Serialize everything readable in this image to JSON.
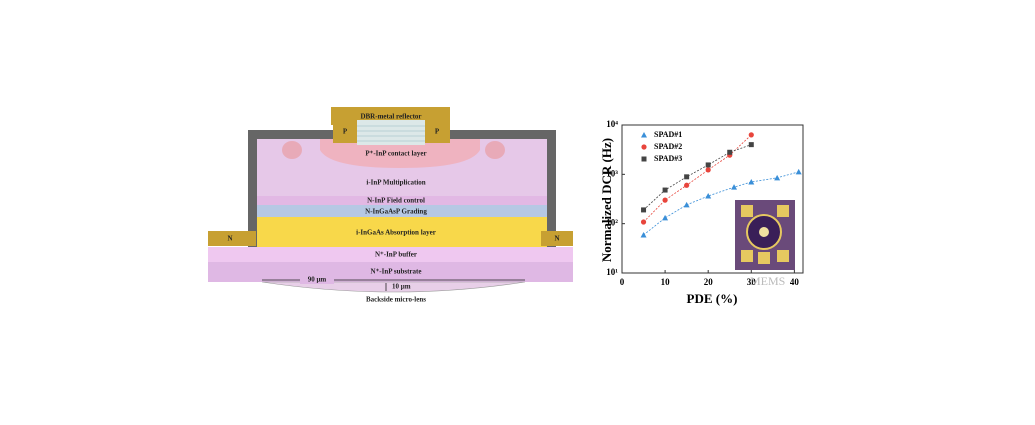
{
  "diagram": {
    "layers": {
      "reflector": "DBR-metal reflector",
      "p_contact_left": "P",
      "p_contact_right": "P",
      "contact": "P⁺-InP contact layer",
      "multiplication": "i-InP Multiplication",
      "field": "N-InP Field control",
      "grading": "N-InGaAsP Grading",
      "absorption": "i-InGaAs Absorption layer",
      "n_contact_left": "N",
      "n_contact_right": "N",
      "buffer": "N⁺-InP buffer",
      "substrate": "N⁺-InP substrate"
    },
    "dimensions": {
      "width": "90 μm",
      "height": "10 μm"
    },
    "lens": "Backside micro-lens"
  },
  "chart_data": {
    "type": "scatter",
    "xlabel": "PDE (%)",
    "ylabel": "Normalized DCR (Hz)",
    "xlim": [
      0,
      42
    ],
    "xticks": [
      0,
      10,
      20,
      30,
      40
    ],
    "ylim": [
      10,
      10000
    ],
    "log_y": true,
    "yticks": [
      {
        "value": 10,
        "label": "10¹"
      },
      {
        "value": 100,
        "label": "10²"
      },
      {
        "value": 1000,
        "label": "10³"
      },
      {
        "value": 10000,
        "label": "10⁴"
      }
    ],
    "legend": "top-left",
    "series": [
      {
        "name": "SPAD#1",
        "color": "#3a8fd8",
        "marker": "triangle",
        "x": [
          5,
          10,
          15,
          20,
          26,
          30,
          36,
          41
        ],
        "values": [
          59,
          131,
          240,
          363,
          550,
          700,
          850,
          1120
        ]
      },
      {
        "name": "SPAD#2",
        "color": "#e8453c",
        "marker": "circle",
        "x": [
          5,
          10,
          15,
          20,
          25,
          30
        ],
        "values": [
          108,
          300,
          600,
          1230,
          2450,
          6300
        ]
      },
      {
        "name": "SPAD#3",
        "color": "#444444",
        "marker": "square",
        "x": [
          5,
          10,
          15,
          20,
          25,
          30
        ],
        "values": [
          190,
          480,
          890,
          1550,
          2800,
          4000
        ]
      }
    ],
    "watermark": "MEMS"
  }
}
